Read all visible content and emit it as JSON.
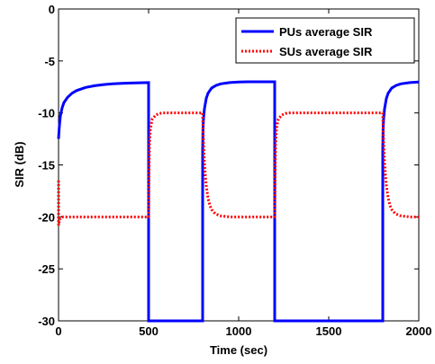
{
  "chart_data": {
    "type": "line",
    "xlabel": "Time (sec)",
    "ylabel": "SIR (dB)",
    "xlim": [
      0,
      2000
    ],
    "ylim": [
      -30,
      0
    ],
    "xticks": [
      0,
      500,
      1000,
      1500,
      2000
    ],
    "yticks": [
      0,
      -5,
      -10,
      -15,
      -20,
      -25,
      -30
    ],
    "grid": false,
    "legend_position": "top-right",
    "series": [
      {
        "name": "PUs average SIR",
        "color": "#0000ff",
        "style": "solid",
        "x": [
          0,
          2,
          5,
          10,
          20,
          30,
          50,
          75,
          100,
          150,
          200,
          250,
          300,
          350,
          400,
          450,
          499,
          500,
          500,
          800,
          800,
          802,
          805,
          810,
          820,
          830,
          850,
          875,
          900,
          950,
          1000,
          1050,
          1100,
          1150,
          1199,
          1200,
          1200,
          1800,
          1800,
          1802,
          1805,
          1810,
          1820,
          1830,
          1850,
          1875,
          1900,
          1950,
          2000
        ],
        "y": [
          -12.5,
          -11.9,
          -11.2,
          -10.3,
          -9.5,
          -9.0,
          -8.5,
          -8.1,
          -7.85,
          -7.55,
          -7.38,
          -7.27,
          -7.2,
          -7.15,
          -7.12,
          -7.1,
          -7.08,
          -7.08,
          -30,
          -30,
          -13.5,
          -11.5,
          -10.5,
          -9.6,
          -8.6,
          -8.1,
          -7.6,
          -7.35,
          -7.2,
          -7.08,
          -7.02,
          -7.0,
          -7.0,
          -7.0,
          -7.0,
          -7.0,
          -30,
          -30,
          -13.5,
          -11.5,
          -10.5,
          -9.6,
          -8.6,
          -8.1,
          -7.6,
          -7.35,
          -7.2,
          -7.08,
          -7.02
        ]
      },
      {
        "name": "SUs average SIR",
        "color": "#ff0000",
        "style": "dotted",
        "x": [
          0,
          0,
          2,
          5,
          8,
          12,
          20,
          30,
          50,
          499,
          500,
          502,
          505,
          510,
          520,
          540,
          560,
          580,
          600,
          800,
          800,
          802,
          805,
          810,
          815,
          820,
          830,
          840,
          850,
          870,
          900,
          950,
          1000,
          1100,
          1199,
          1200,
          1202,
          1205,
          1210,
          1220,
          1240,
          1260,
          1280,
          1300,
          1800,
          1800,
          1802,
          1805,
          1810,
          1815,
          1820,
          1830,
          1840,
          1850,
          1870,
          1900,
          1950,
          2000
        ],
        "y": [
          -16.5,
          -20.8,
          -20.6,
          -20.4,
          -20.2,
          -20.1,
          -20.0,
          -20.0,
          -20.0,
          -20.0,
          -20.0,
          -16.0,
          -13.0,
          -11.5,
          -10.6,
          -10.2,
          -10.05,
          -10.0,
          -10.0,
          -10.0,
          -10.0,
          -11.5,
          -13.0,
          -14.8,
          -16.0,
          -17.0,
          -18.2,
          -18.9,
          -19.3,
          -19.7,
          -19.9,
          -20.0,
          -20.0,
          -20.0,
          -20.0,
          -20.0,
          -16.0,
          -13.0,
          -11.5,
          -10.6,
          -10.2,
          -10.05,
          -10.0,
          -10.0,
          -10.0,
          -10.0,
          -11.5,
          -13.0,
          -14.8,
          -16.0,
          -17.0,
          -18.2,
          -18.9,
          -19.3,
          -19.7,
          -19.9,
          -20.0,
          -20.0
        ]
      }
    ]
  }
}
